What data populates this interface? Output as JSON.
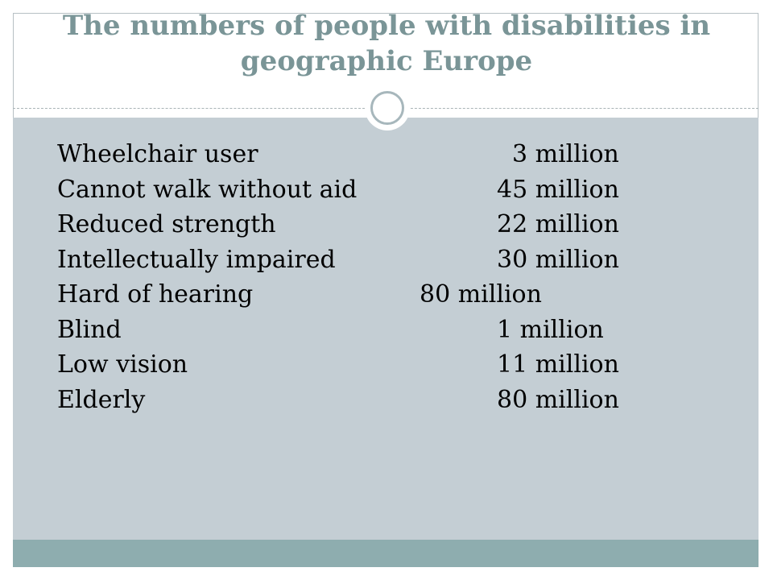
{
  "slide": {
    "title": "The numbers of people with disabilities in geographic Europe",
    "rows": [
      {
        "label": "Wheelchair user",
        "value": "3 million"
      },
      {
        "label": "Cannot walk without aid",
        "value": "45 million"
      },
      {
        "label": "Reduced strength",
        "value": "22 million"
      },
      {
        "label": "Intellectually impaired",
        "value": "30 million"
      },
      {
        "label": "Hard of hearing",
        "value": "80 million"
      },
      {
        "label": "Blind",
        "value": "1 million"
      },
      {
        "label": "Low vision",
        "value": "11 million"
      },
      {
        "label": "Elderly",
        "value": "80 million"
      }
    ]
  },
  "colors": {
    "title": "#7a9597",
    "panel": "#c4ced4",
    "footer": "#8eadaf",
    "ring": "#a7b7bc"
  }
}
